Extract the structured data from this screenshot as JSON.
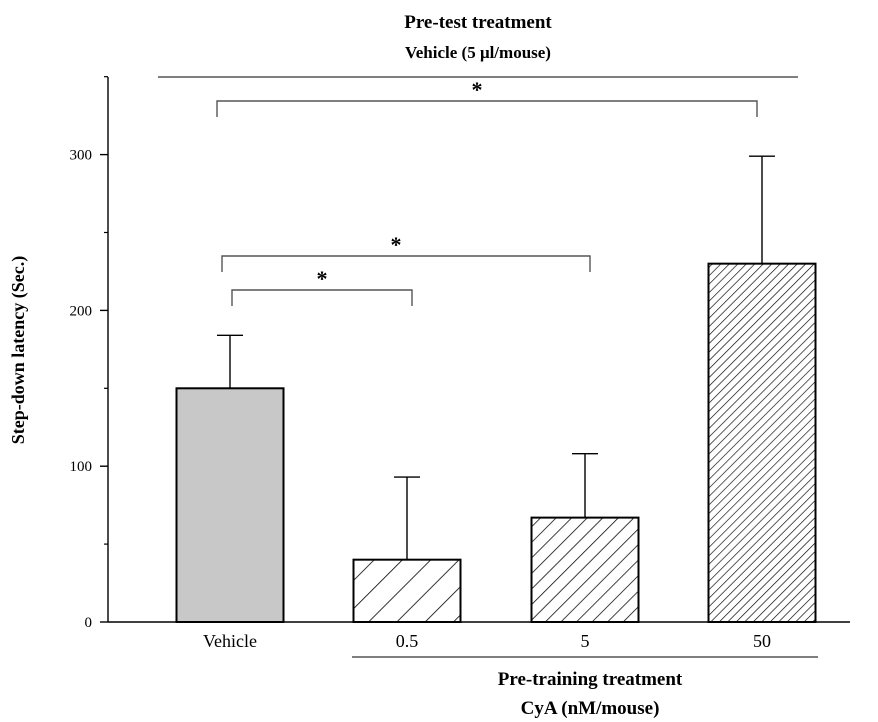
{
  "header": {
    "title": "Pre-test treatment",
    "subtitle": "Vehicle (5 μl/mouse)"
  },
  "footer": {
    "title": "Pre-training treatment",
    "subtitle": "CyA (nM/mouse)"
  },
  "chart_data": {
    "type": "bar",
    "title": "Pre-test treatment",
    "subtitle": "Vehicle (5 μl/mouse)",
    "xlabel": "Pre-training treatment CyA (nM/mouse)",
    "ylabel": "Step-down latency (Sec.)",
    "categories": [
      "Vehicle",
      "0.5",
      "5",
      "50"
    ],
    "values": [
      150,
      40,
      67,
      230
    ],
    "error_upper": [
      184,
      93,
      108,
      299
    ],
    "fills": [
      "solid-gray",
      "sparse-hatch",
      "medium-hatch",
      "dense-hatch"
    ],
    "bar_fill_color": "#c8c8c8",
    "ylim": [
      0,
      350
    ],
    "yticks": [
      0,
      100,
      200,
      300
    ],
    "grid": false,
    "significance": [
      {
        "from": 0,
        "to": 1,
        "label": "*"
      },
      {
        "from": 0,
        "to": 2,
        "label": "*"
      },
      {
        "from": 0,
        "to": 3,
        "label": "*"
      }
    ]
  }
}
